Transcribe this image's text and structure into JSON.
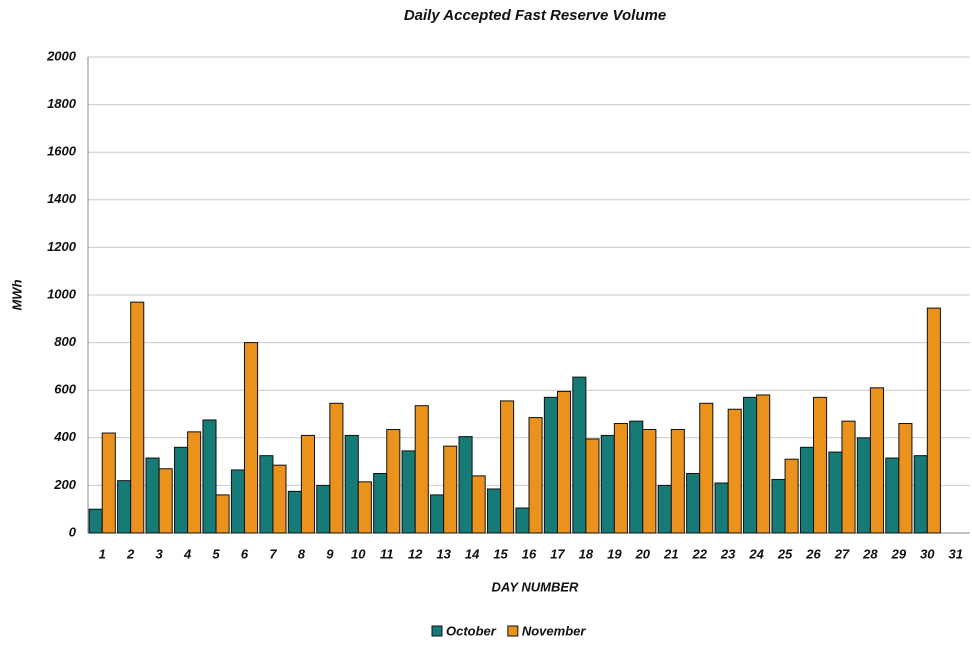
{
  "chart_data": {
    "type": "bar",
    "title": "Daily Accepted Fast Reserve Volume",
    "x_label": "DAY NUMBER",
    "y_label": "MWh",
    "categories": [
      "1",
      "2",
      "3",
      "4",
      "5",
      "6",
      "7",
      "8",
      "9",
      "10",
      "11",
      "12",
      "13",
      "14",
      "15",
      "16",
      "17",
      "18",
      "19",
      "20",
      "21",
      "22",
      "23",
      "24",
      "25",
      "26",
      "27",
      "28",
      "29",
      "30",
      "31"
    ],
    "series": [
      {
        "name": "October",
        "color": "#167a76",
        "values": [
          100,
          220,
          315,
          360,
          475,
          265,
          325,
          175,
          200,
          410,
          250,
          345,
          160,
          405,
          185,
          105,
          570,
          655,
          410,
          470,
          200,
          250,
          210,
          570,
          225,
          360,
          340,
          400,
          315,
          325,
          null
        ]
      },
      {
        "name": "November",
        "color": "#ea921c",
        "values": [
          420,
          970,
          270,
          425,
          160,
          800,
          285,
          410,
          545,
          215,
          435,
          535,
          365,
          240,
          555,
          485,
          595,
          395,
          460,
          435,
          435,
          545,
          520,
          580,
          310,
          570,
          470,
          610,
          460,
          945,
          null
        ]
      }
    ],
    "ylim": [
      0,
      2000
    ],
    "yticks": [
      0,
      200,
      400,
      600,
      800,
      1000,
      1200,
      1400,
      1600,
      1800,
      2000
    ],
    "grid": true,
    "legend": "bottom"
  }
}
